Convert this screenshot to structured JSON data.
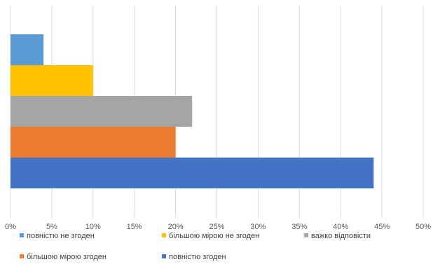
{
  "chart_data": {
    "type": "bar",
    "orientation": "horizontal",
    "title": "",
    "xlabel": "",
    "ylabel": "",
    "xlim": [
      0,
      50
    ],
    "x_ticks": [
      "0%",
      "5%",
      "10%",
      "15%",
      "20%",
      "25%",
      "30%",
      "35%",
      "40%",
      "45%",
      "50%"
    ],
    "grid": true,
    "legend_position": "bottom",
    "series": [
      {
        "name": "повністю не згоден",
        "value": 4,
        "color": "#5B9BD5"
      },
      {
        "name": "більшою мірою не згоден",
        "value": 10,
        "color": "#FFC000"
      },
      {
        "name": "важко відповісти",
        "value": 22,
        "color": "#A5A5A5"
      },
      {
        "name": "більшою мірою згоден",
        "value": 20,
        "color": "#ED7D31"
      },
      {
        "name": "повністю згоден",
        "value": 44,
        "color": "#4472C4"
      }
    ]
  }
}
